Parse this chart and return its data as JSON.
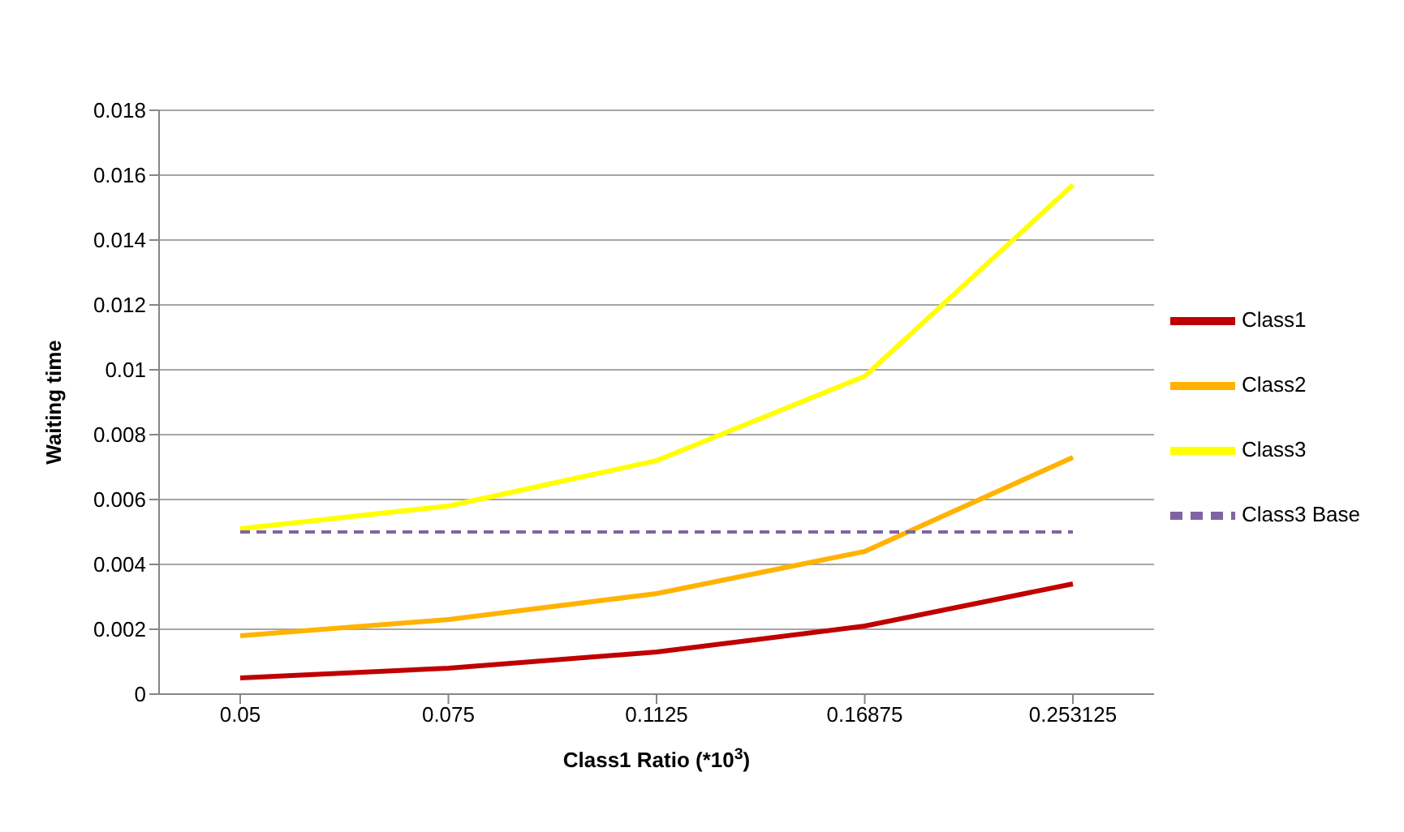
{
  "chart_data": {
    "type": "line",
    "xlabel": "Class1 Ratio (*10$^{3}$)",
    "ylabel": "Waiting time",
    "categories": [
      "0.05",
      "0.075",
      "0.1125",
      "0.16875",
      "0.253125"
    ],
    "series": [
      {
        "name": "Class1",
        "color": "#c00000",
        "values": [
          0.0005,
          0.0008,
          0.0013,
          0.0021,
          0.0034
        ]
      },
      {
        "name": "Class2",
        "color": "#ffb300",
        "values": [
          0.0018,
          0.0023,
          0.0031,
          0.0044,
          0.0073
        ]
      },
      {
        "name": "Class3",
        "color": "#ffff00",
        "values": [
          0.0051,
          0.0058,
          0.0072,
          0.0098,
          0.0157
        ]
      },
      {
        "name": "Class3 Base",
        "color": "#8064a2",
        "line_style": "dashed",
        "values": [
          0.005,
          0.005,
          0.005,
          0.005,
          0.005
        ]
      }
    ],
    "ylim": [
      0,
      0.018
    ],
    "yticks": [
      0,
      0.002,
      0.004,
      0.006,
      0.008,
      0.01,
      0.012,
      0.014,
      0.016,
      0.018
    ],
    "grid": "y",
    "legend": "right",
    "marker": "none",
    "line_style": "solid"
  }
}
